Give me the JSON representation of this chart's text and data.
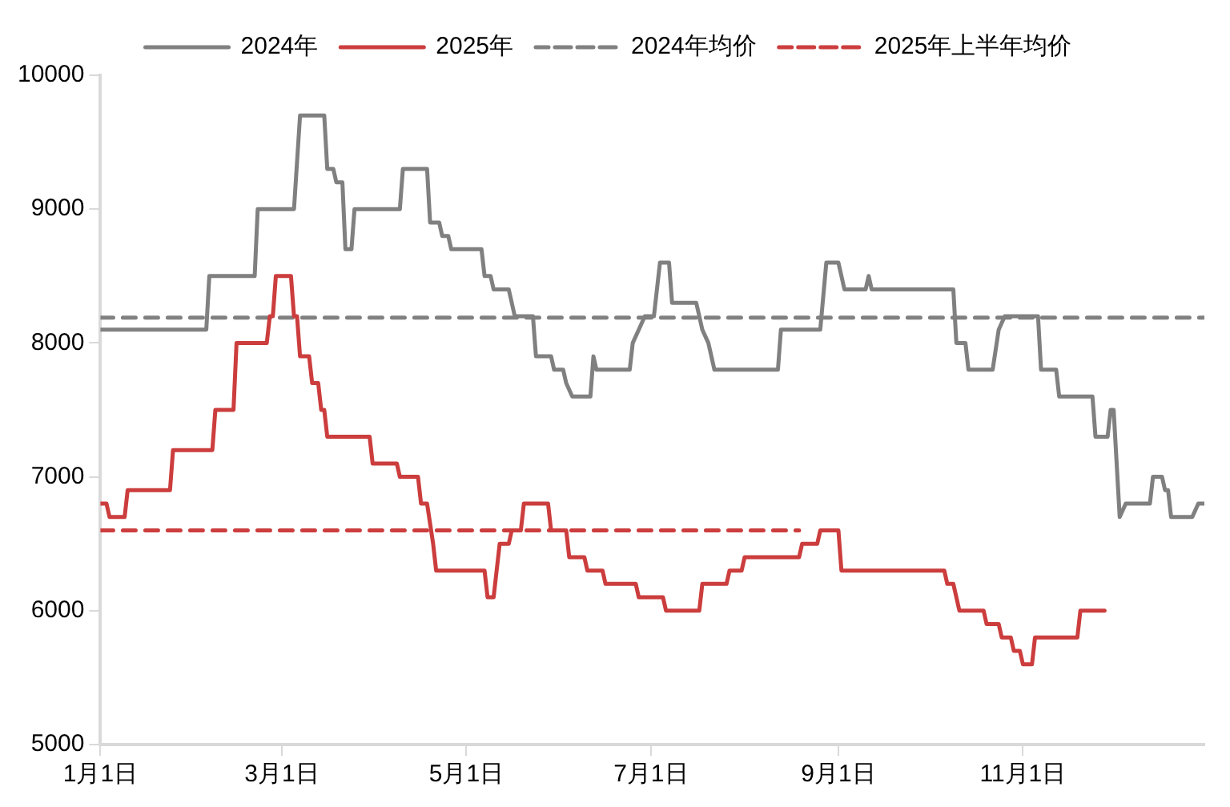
{
  "chart_data": {
    "type": "line",
    "xlim": [
      "--01-01",
      "--12-31"
    ],
    "xticks": [
      {
        "value": "--01-01",
        "label": "1月1日"
      },
      {
        "value": "--03-01",
        "label": "3月1日"
      },
      {
        "value": "--05-01",
        "label": "5月1日"
      },
      {
        "value": "--07-01",
        "label": "7月1日"
      },
      {
        "value": "--09-01",
        "label": "9月1日"
      },
      {
        "value": "--11-01",
        "label": "11月1日"
      }
    ],
    "ylim": [
      5000,
      10000
    ],
    "yticks": [
      5000,
      6000,
      7000,
      8000,
      9000,
      10000
    ],
    "grid": false,
    "legend": "top",
    "marker": "none",
    "series": [
      {
        "name": "2024年",
        "color": "#808080",
        "line_style": "solid",
        "x": [
          "--01-01",
          "--02-05",
          "--02-06",
          "--02-21",
          "--02-22",
          "--03-05",
          "--03-07",
          "--03-15",
          "--03-16",
          "--03-18",
          "--03-19",
          "--03-21",
          "--03-22",
          "--03-24",
          "--03-25",
          "--04-09",
          "--04-10",
          "--04-18",
          "--04-19",
          "--04-22",
          "--04-23",
          "--04-25",
          "--04-26",
          "--05-06",
          "--05-07",
          "--05-09",
          "--05-10",
          "--05-15",
          "--05-17",
          "--05-23",
          "--05-24",
          "--05-29",
          "--05-30",
          "--06-02",
          "--06-03",
          "--06-05",
          "--06-11",
          "--06-12",
          "--06-13",
          "--06-24",
          "--06-25",
          "--06-27",
          "--06-29",
          "--07-02",
          "--07-04",
          "--07-07",
          "--07-08",
          "--07-16",
          "--07-18",
          "--07-20",
          "--07-22",
          "--08-12",
          "--08-13",
          "--08-26",
          "--08-28",
          "--09-01",
          "--09-03",
          "--09-10",
          "--09-11",
          "--09-12",
          "--10-09",
          "--10-10",
          "--10-13",
          "--10-14",
          "--10-22",
          "--10-24",
          "--10-26",
          "--11-06",
          "--11-07",
          "--11-12",
          "--11-13",
          "--11-24",
          "--11-25",
          "--11-29",
          "--11-30",
          "--12-01",
          "--12-03",
          "--12-05",
          "--12-13",
          "--12-14",
          "--12-17",
          "--12-18",
          "--12-19",
          "--12-20",
          "--12-27",
          "--12-29",
          "--12-31"
        ],
        "values": [
          8100,
          8100,
          8500,
          8500,
          9000,
          9000,
          9700,
          9700,
          9300,
          9300,
          9200,
          9200,
          8700,
          8700,
          9000,
          9000,
          9300,
          9300,
          8900,
          8900,
          8800,
          8800,
          8700,
          8700,
          8500,
          8500,
          8400,
          8400,
          8200,
          8200,
          7900,
          7900,
          7800,
          7800,
          7700,
          7600,
          7600,
          7900,
          7800,
          7800,
          8000,
          8100,
          8200,
          8200,
          8600,
          8600,
          8300,
          8300,
          8100,
          8000,
          7800,
          7800,
          8100,
          8100,
          8600,
          8600,
          8400,
          8400,
          8500,
          8400,
          8400,
          8000,
          8000,
          7800,
          7800,
          8100,
          8200,
          8200,
          7800,
          7800,
          7600,
          7600,
          7300,
          7300,
          7500,
          7500,
          6700,
          6800,
          6800,
          7000,
          7000,
          6900,
          6900,
          6700,
          6700,
          6800,
          6800
        ]
      },
      {
        "name": "2025年",
        "color": "#cc3d3d",
        "line_style": "solid",
        "x": [
          "--01-01",
          "--01-03",
          "--01-04",
          "--01-09",
          "--01-10",
          "--01-24",
          "--01-25",
          "--02-07",
          "--02-08",
          "--02-14",
          "--02-15",
          "--02-25",
          "--02-26",
          "--02-27",
          "--02-28",
          "--03-04",
          "--03-05",
          "--03-06",
          "--03-07",
          "--03-10",
          "--03-11",
          "--03-13",
          "--03-14",
          "--03-15",
          "--03-16",
          "--03-30",
          "--03-31",
          "--04-08",
          "--04-09",
          "--04-15",
          "--04-16",
          "--04-18",
          "--04-20",
          "--04-21",
          "--05-07",
          "--05-08",
          "--05-10",
          "--05-12",
          "--05-15",
          "--05-16",
          "--05-19",
          "--05-20",
          "--05-28",
          "--05-29",
          "--06-03",
          "--06-04",
          "--06-09",
          "--06-10",
          "--06-15",
          "--06-16",
          "--06-26",
          "--06-27",
          "--07-05",
          "--07-06",
          "--07-17",
          "--07-18",
          "--07-26",
          "--07-27",
          "--07-31",
          "--08-01",
          "--08-19",
          "--08-20",
          "--08-25",
          "--08-26",
          "--09-01",
          "--09-02",
          "--10-06",
          "--10-07",
          "--10-09",
          "--10-11",
          "--10-19",
          "--10-20",
          "--10-24",
          "--10-25",
          "--10-28",
          "--10-29",
          "--10-31",
          "--11-01",
          "--11-04",
          "--11-05",
          "--11-19",
          "--11-20",
          "--11-28"
        ],
        "values": [
          6800,
          6800,
          6700,
          6700,
          6900,
          6900,
          7200,
          7200,
          7500,
          7500,
          8000,
          8000,
          8200,
          8200,
          8500,
          8500,
          8200,
          8200,
          7900,
          7900,
          7700,
          7700,
          7500,
          7500,
          7300,
          7300,
          7100,
          7100,
          7000,
          7000,
          6800,
          6800,
          6500,
          6300,
          6300,
          6100,
          6100,
          6500,
          6500,
          6600,
          6600,
          6800,
          6800,
          6600,
          6600,
          6400,
          6400,
          6300,
          6300,
          6200,
          6200,
          6100,
          6100,
          6000,
          6000,
          6200,
          6200,
          6300,
          6300,
          6400,
          6400,
          6500,
          6500,
          6600,
          6600,
          6300,
          6300,
          6200,
          6200,
          6000,
          6000,
          5900,
          5900,
          5800,
          5800,
          5700,
          5700,
          5600,
          5600,
          5800,
          5800,
          6000,
          6000
        ]
      },
      {
        "name": "2024年均价",
        "color": "#808080",
        "line_style": "dashed",
        "x": [
          "--01-01",
          "--12-31"
        ],
        "values": [
          8190,
          8190
        ]
      },
      {
        "name": "2025年上半年均价",
        "color": "#cc3d3d",
        "line_style": "dashed",
        "x": [
          "--01-01",
          "--08-19"
        ],
        "values": [
          6600,
          6600
        ]
      }
    ]
  }
}
